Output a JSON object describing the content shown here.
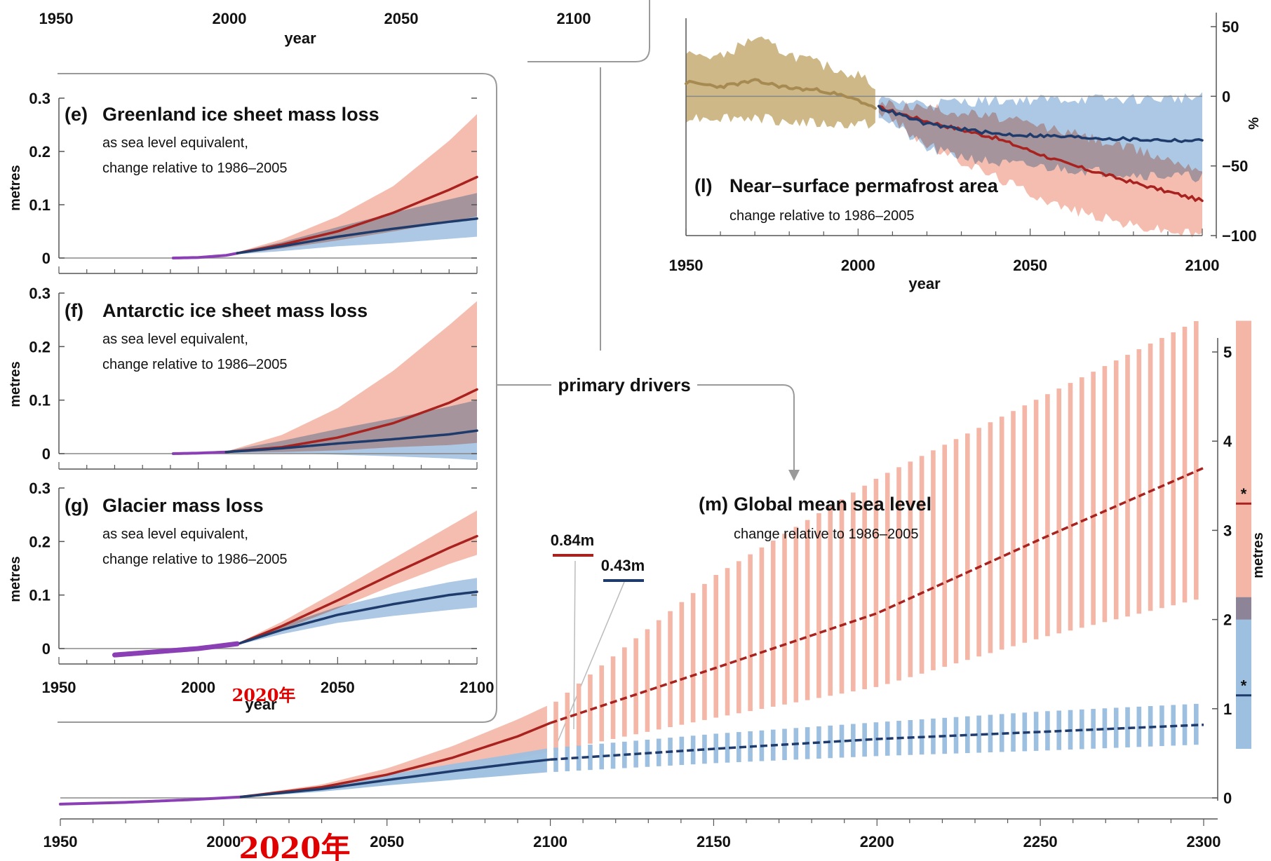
{
  "colors": {
    "high": "#a8231f",
    "high_band": "#f4b6a6",
    "low": "#1f3b6b",
    "low_band": "#9dbfe0",
    "overlap_band": "#8e8497",
    "historical": "#8b3fb5",
    "permafrost_hist": "#a68a52",
    "permafrost_hist_band": "#c9b07a",
    "annotation": "#e00000",
    "frame": "#9a9a9a"
  },
  "top_strip": {
    "ticks": [
      "1950",
      "2000",
      "2050",
      "2100"
    ],
    "xlabel": "year"
  },
  "annotations": {
    "small": "2020年",
    "large": "2020年"
  },
  "connector_label": "primary drivers",
  "panels": {
    "greenland": {
      "letter": "(e)",
      "title": "Greenland ice sheet mass loss",
      "sub1": "as sea level equivalent,",
      "sub2": "change relative to 1986–2005",
      "ylabel": "metres"
    },
    "antarctic": {
      "letter": "(f)",
      "title": "Antarctic ice sheet mass loss",
      "sub1": "as sea level equivalent,",
      "sub2": "change relative to 1986–2005",
      "ylabel": "metres"
    },
    "glacier": {
      "letter": "(g)",
      "title": "Glacier mass loss",
      "sub1": "as sea level equivalent,",
      "sub2": "change relative to 1986–2005",
      "ylabel": "metres",
      "xlabel": "year"
    },
    "permafrost": {
      "letter": "(l)",
      "title": "Near–surface permafrost area",
      "sub": "change relative to 1986–2005",
      "ylabel": "%",
      "xlabel": "year"
    },
    "sealevel": {
      "letter": "(m)",
      "title": "Global mean sea level",
      "sub": "change relative to 1986–2005",
      "ylabel": "metres",
      "label_high": "0.84m",
      "label_low": "0.43m",
      "marker": "*"
    }
  },
  "chart_data": [
    {
      "id": "greenland",
      "type": "line",
      "xlim": [
        1950,
        2100
      ],
      "ylim": [
        0,
        0.3
      ],
      "x_ticks": [
        1950,
        2000,
        2050,
        2100
      ],
      "y_ticks": [
        0,
        0.1,
        0.2,
        0.3
      ],
      "y_tick_labels": [
        "0",
        "0.1",
        "0.2",
        "0.3"
      ],
      "series": [
        {
          "role": "historical",
          "x": [
            1991,
            2000,
            2010,
            2014
          ],
          "y": [
            0,
            0.001,
            0.005,
            0.009
          ]
        },
        {
          "role": "high",
          "x": [
            2014,
            2030,
            2050,
            2070,
            2090,
            2100
          ],
          "y": [
            0.009,
            0.025,
            0.05,
            0.085,
            0.128,
            0.152
          ],
          "band_low": [
            0.007,
            0.018,
            0.033,
            0.05,
            0.068,
            0.078
          ],
          "band_high": [
            0.011,
            0.035,
            0.078,
            0.135,
            0.22,
            0.27
          ]
        },
        {
          "role": "low",
          "x": [
            2014,
            2030,
            2050,
            2070,
            2090,
            2100
          ],
          "y": [
            0.009,
            0.022,
            0.04,
            0.055,
            0.068,
            0.074
          ],
          "band_low": [
            0.007,
            0.013,
            0.022,
            0.028,
            0.036,
            0.04
          ],
          "band_high": [
            0.011,
            0.03,
            0.058,
            0.085,
            0.11,
            0.122
          ]
        }
      ]
    },
    {
      "id": "antarctic",
      "type": "line",
      "xlim": [
        1950,
        2100
      ],
      "ylim": [
        0,
        0.3
      ],
      "x_ticks": [
        1950,
        2000,
        2050,
        2100
      ],
      "y_ticks": [
        0,
        0.1,
        0.2,
        0.3
      ],
      "y_tick_labels": [
        "0",
        "0.1",
        "0.2",
        "0.3"
      ],
      "series": [
        {
          "role": "historical",
          "x": [
            1991,
            2000,
            2010
          ],
          "y": [
            0,
            0.001,
            0.003
          ]
        },
        {
          "role": "high",
          "x": [
            2010,
            2030,
            2050,
            2070,
            2090,
            2100
          ],
          "y": [
            0.003,
            0.012,
            0.03,
            0.057,
            0.095,
            0.12
          ],
          "band_low": [
            0.002,
            0.003,
            0.006,
            0.012,
            0.016,
            0.02
          ],
          "band_high": [
            0.004,
            0.035,
            0.085,
            0.155,
            0.24,
            0.285
          ]
        },
        {
          "role": "low",
          "x": [
            2010,
            2030,
            2050,
            2070,
            2090,
            2100
          ],
          "y": [
            0.003,
            0.01,
            0.019,
            0.027,
            0.036,
            0.043
          ],
          "band_low": [
            0.001,
            0.001,
            -0.002,
            -0.005,
            -0.009,
            -0.012
          ],
          "band_high": [
            0.005,
            0.024,
            0.046,
            0.066,
            0.088,
            0.1
          ]
        }
      ]
    },
    {
      "id": "glacier",
      "type": "line",
      "xlim": [
        1950,
        2100
      ],
      "ylim": [
        0,
        0.3
      ],
      "x_ticks": [
        1950,
        2000,
        2050,
        2100
      ],
      "y_ticks": [
        0,
        0.1,
        0.2,
        0.3
      ],
      "x_tick_labels": [
        "1950",
        "2000",
        "2050",
        "2100"
      ],
      "y_tick_labels": [
        "0",
        "0.1",
        "0.2",
        "0.3"
      ],
      "series": [
        {
          "role": "historical",
          "x": [
            1970,
            1985,
            2000,
            2014
          ],
          "y": [
            -0.012,
            -0.006,
            0,
            0.009
          ]
        },
        {
          "role": "high",
          "x": [
            2015,
            2030,
            2050,
            2070,
            2090,
            2100
          ],
          "y": [
            0.01,
            0.042,
            0.09,
            0.14,
            0.188,
            0.21
          ],
          "band_low": [
            0.008,
            0.035,
            0.075,
            0.118,
            0.158,
            0.175
          ],
          "band_high": [
            0.012,
            0.05,
            0.108,
            0.168,
            0.228,
            0.258
          ]
        },
        {
          "role": "low",
          "x": [
            2015,
            2030,
            2050,
            2070,
            2090,
            2100
          ],
          "y": [
            0.01,
            0.035,
            0.063,
            0.083,
            0.1,
            0.106
          ],
          "band_low": [
            0.008,
            0.027,
            0.048,
            0.061,
            0.072,
            0.077
          ],
          "band_high": [
            0.012,
            0.043,
            0.078,
            0.103,
            0.124,
            0.132
          ]
        }
      ]
    },
    {
      "id": "permafrost",
      "type": "line",
      "xlim": [
        1950,
        2100
      ],
      "ylim": [
        -100,
        50
      ],
      "x_ticks": [
        1950,
        2000,
        2050,
        2100
      ],
      "y_ticks": [
        -100,
        -50,
        0,
        50
      ],
      "x_tick_labels": [
        "1950",
        "2000",
        "2050",
        "2100"
      ],
      "y_tick_labels": [
        "−100",
        "−50",
        "0",
        "50"
      ],
      "series": [
        {
          "role": "historical",
          "x": [
            1950,
            1960,
            1970,
            1980,
            1990,
            2000,
            2005
          ],
          "y": [
            10,
            7,
            11,
            6,
            4,
            -3,
            -8
          ],
          "band_low": [
            -15,
            -15,
            -15,
            -18,
            -20,
            -20,
            -20
          ],
          "band_high": [
            30,
            28,
            42,
            30,
            22,
            15,
            8
          ]
        },
        {
          "role": "high",
          "x": [
            2006,
            2020,
            2040,
            2060,
            2080,
            2100
          ],
          "y": [
            -8,
            -18,
            -30,
            -48,
            -62,
            -75
          ],
          "band_low": [
            -10,
            -35,
            -58,
            -80,
            -93,
            -100
          ],
          "band_high": [
            -5,
            -8,
            -15,
            -25,
            -38,
            -52
          ]
        },
        {
          "role": "low",
          "x": [
            2006,
            2020,
            2040,
            2060,
            2080,
            2100
          ],
          "y": [
            -8,
            -20,
            -27,
            -29,
            -31,
            -32
          ],
          "band_low": [
            -12,
            -38,
            -48,
            -52,
            -56,
            -58
          ],
          "band_high": [
            -3,
            -5,
            -3,
            -2,
            -2,
            -1
          ]
        }
      ]
    },
    {
      "id": "sealevel",
      "type": "line",
      "xlim": [
        1950,
        2300
      ],
      "ylim": [
        0,
        5
      ],
      "x_ticks": [
        1950,
        2000,
        2050,
        2100,
        2150,
        2200,
        2250,
        2300
      ],
      "x_tick_labels": [
        "1950",
        "2000",
        "2050",
        "2100",
        "2150",
        "2200",
        "2250",
        "2300"
      ],
      "y_ticks": [
        0,
        1,
        2,
        3,
        4,
        5
      ],
      "y_tick_labels": [
        "0",
        "1",
        "2",
        "3",
        "4",
        "5"
      ],
      "series": [
        {
          "role": "historical",
          "x": [
            1950,
            1970,
            1990,
            2000,
            2005
          ],
          "y": [
            -0.07,
            -0.05,
            -0.02,
            0,
            0.01
          ]
        },
        {
          "role": "high",
          "x": [
            2005,
            2030,
            2050,
            2070,
            2090,
            2100,
            2150,
            2200,
            2250,
            2300
          ],
          "y": [
            0.01,
            0.12,
            0.26,
            0.45,
            0.69,
            0.84,
            1.45,
            2.07,
            2.9,
            3.7
          ],
          "band_low": [
            0.01,
            0.09,
            0.18,
            0.3,
            0.44,
            0.52,
            0.9,
            1.25,
            1.8,
            2.25
          ],
          "band_high": [
            0.02,
            0.15,
            0.33,
            0.58,
            0.88,
            1.05,
            2.5,
            3.6,
            4.5,
            5.4
          ]
        },
        {
          "role": "low",
          "x": [
            2005,
            2030,
            2050,
            2070,
            2090,
            2100,
            2150,
            2200,
            2250,
            2300
          ],
          "y": [
            0.01,
            0.1,
            0.2,
            0.3,
            0.39,
            0.43,
            0.55,
            0.66,
            0.74,
            0.82
          ],
          "band_low": [
            0.005,
            0.07,
            0.14,
            0.2,
            0.26,
            0.29,
            0.39,
            0.47,
            0.53,
            0.6
          ],
          "band_high": [
            0.015,
            0.13,
            0.26,
            0.38,
            0.5,
            0.56,
            0.72,
            0.85,
            0.97,
            1.06
          ]
        }
      ],
      "range_2300": {
        "high": {
          "median": 3.3,
          "low": 2.0,
          "high": 5.35
        },
        "low": {
          "median": 1.15,
          "low": 0.55,
          "high": 2.25
        }
      }
    }
  ]
}
